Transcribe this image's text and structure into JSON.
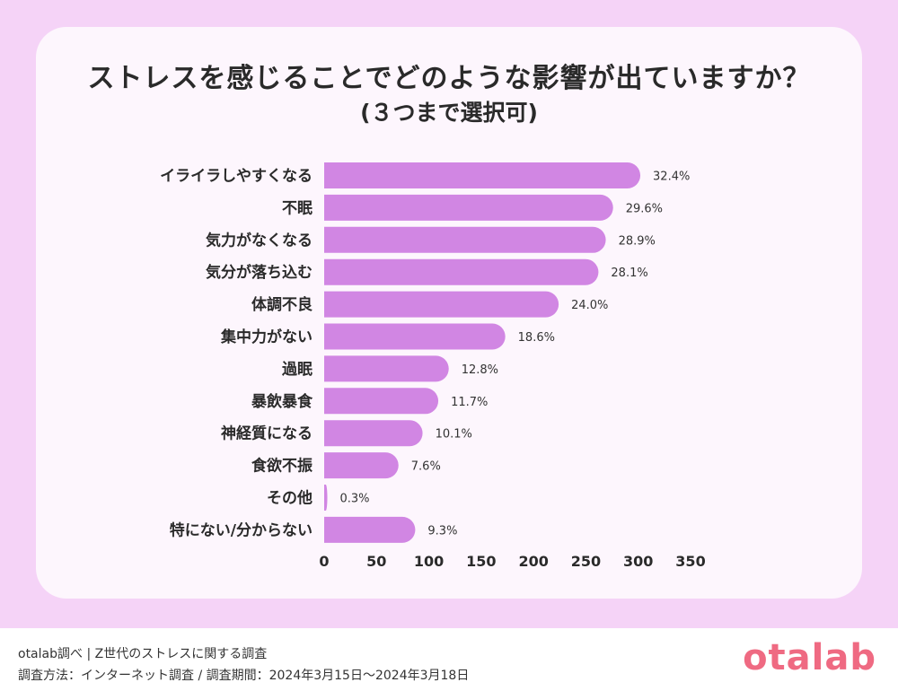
{
  "chart_data": {
    "type": "bar",
    "orientation": "horizontal",
    "title": "ストレスを感じることでどのような影響が出ていますか？",
    "subtitle": "(３つまで選択可)",
    "categories": [
      "イライラしやすくなる",
      "不眠",
      "気力がなくなる",
      "気分が落ち込む",
      "体調不良",
      "集中力がない",
      "過眠",
      "暴飲暴食",
      "神経質になる",
      "食欲不振",
      "その他",
      "特にない/分からない"
    ],
    "values": [
      302,
      276,
      269,
      262,
      224,
      173,
      119,
      109,
      94,
      71,
      3,
      87
    ],
    "value_labels": [
      "32.4%",
      "29.6%",
      "28.9%",
      "28.1%",
      "24.0%",
      "18.6%",
      "12.8%",
      "11.7%",
      "10.1%",
      "7.6%",
      "0.3%",
      "9.3%"
    ],
    "x_ticks": [
      0,
      50,
      100,
      150,
      200,
      250,
      300,
      350
    ],
    "xlim": [
      0,
      350
    ],
    "bar_color": "#d186e3",
    "grid": false
  },
  "footer": {
    "line1": "otalab調べ | Z世代のストレスに関する調査",
    "line2": "調査方法：インターネット調査 / 調査期間：2024年3月15日〜2024年3月18日",
    "logo": "otalab",
    "logo_color": "#ef6a82"
  }
}
